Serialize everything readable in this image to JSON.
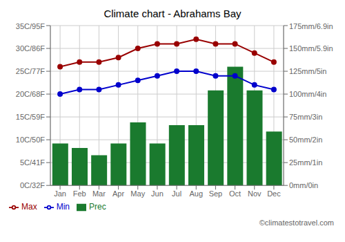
{
  "chart_data": {
    "type": "bar",
    "title": "Climate chart - Abrahams Bay",
    "categories": [
      "Jan",
      "Feb",
      "Mar",
      "Apr",
      "May",
      "Jun",
      "Jul",
      "Aug",
      "Sep",
      "Oct",
      "Nov",
      "Dec"
    ],
    "series": [
      {
        "name": "Prec",
        "type": "bar",
        "axis": "y2",
        "color": "#1a7a2e",
        "values": [
          46,
          41,
          33,
          46,
          69,
          46,
          66,
          66,
          104,
          130,
          104,
          59
        ]
      },
      {
        "name": "Min",
        "type": "line",
        "marker": "circle",
        "color": "#0000cc",
        "values": [
          20,
          21,
          21,
          22,
          23,
          24,
          25,
          25,
          24,
          24,
          22,
          21
        ]
      },
      {
        "name": "Max",
        "type": "line",
        "marker": "circle",
        "color": "#990000",
        "values": [
          26,
          27,
          27,
          28,
          30,
          31,
          31,
          32,
          31,
          31,
          29,
          27
        ]
      }
    ],
    "ylim": [
      0,
      35
    ],
    "yticks": [
      {
        "value": 0,
        "label": "0C/32F"
      },
      {
        "value": 5,
        "label": "5C/41F"
      },
      {
        "value": 10,
        "label": "10C/50F"
      },
      {
        "value": 15,
        "label": "15C/59F"
      },
      {
        "value": 20,
        "label": "20C/68F"
      },
      {
        "value": 25,
        "label": "25C/77F"
      },
      {
        "value": 30,
        "label": "30C/86F"
      },
      {
        "value": 35,
        "label": "35C/95F"
      }
    ],
    "y2lim": [
      0,
      175
    ],
    "y2ticks": [
      {
        "value": 0,
        "label": "0mm/0in"
      },
      {
        "value": 25,
        "label": "25mm/1in"
      },
      {
        "value": 50,
        "label": "50mm/2in"
      },
      {
        "value": 75,
        "label": "75mm/3in"
      },
      {
        "value": 100,
        "label": "100mm/4in"
      },
      {
        "value": 125,
        "label": "125mm/5in"
      },
      {
        "value": 150,
        "label": "150mm/5.9in"
      },
      {
        "value": 175,
        "label": "175mm/6.9in"
      }
    ],
    "grid": true,
    "legend": "lower left",
    "annotations": [
      "©climatestotravel.com"
    ]
  }
}
